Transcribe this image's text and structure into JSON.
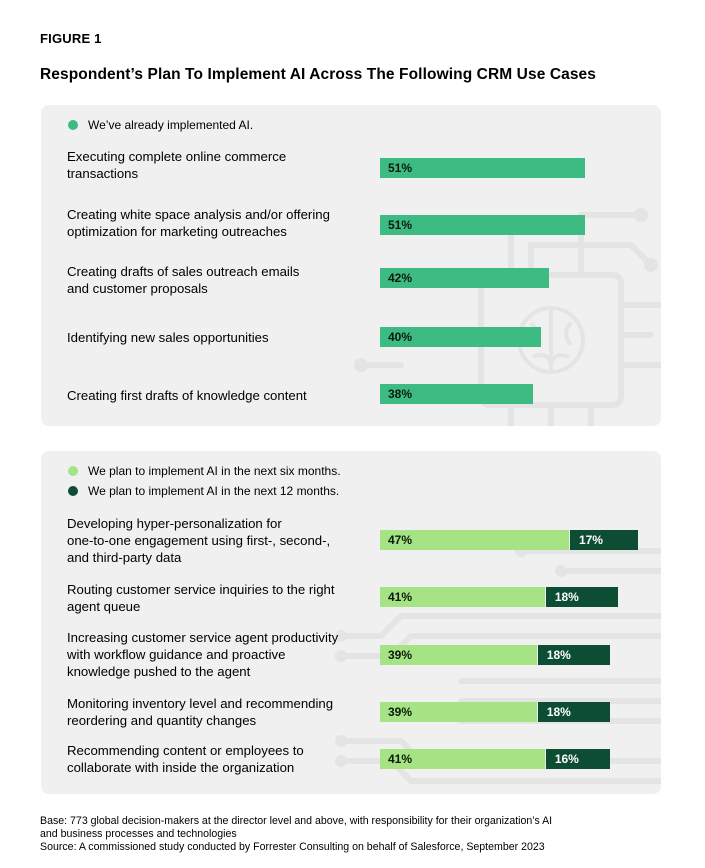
{
  "figure_label": "FIGURE 1",
  "title": "Respondent’s Plan To Implement AI Across The Following CRM Use Cases",
  "colors": {
    "implemented": "#3dbb83",
    "six_months": "#a6e385",
    "twelve_months": "#0c4d33",
    "panel_bg": "#f0f0f0"
  },
  "chart_data": [
    {
      "type": "bar",
      "orientation": "horizontal",
      "legend": [
        "We’ve already implemented AI."
      ],
      "categories": [
        "Executing complete online commerce transactions",
        "Creating white space analysis and/or offering optimization for marketing outreaches",
        "Creating drafts of sales outreach emails and customer proposals",
        "Identifying new sales opportunities",
        "Creating first drafts of knowledge content"
      ],
      "label_lines": [
        [
          "Executing complete online commerce",
          "transactions"
        ],
        [
          "Creating white space analysis and/or offering",
          "optimization for marketing outreaches"
        ],
        [
          "Creating drafts of sales outreach emails",
          "and customer proposals"
        ],
        [
          "Identifying new sales opportunities"
        ],
        [
          "Creating first drafts of knowledge content"
        ]
      ],
      "series": [
        {
          "name": "We’ve already implemented AI.",
          "values": [
            51,
            51,
            42,
            40,
            38
          ]
        }
      ],
      "value_suffix": "%",
      "xlim": [
        0,
        100
      ]
    },
    {
      "type": "bar",
      "orientation": "horizontal",
      "stacked": true,
      "legend": [
        "We plan to implement AI in the next six months.",
        "We plan to implement AI in the next 12 months."
      ],
      "categories": [
        "Developing hyper-personalization for one-to-one engagement using first-, second-, and third-party data",
        "Routing customer service inquiries to the right agent queue",
        "Increasing customer service agent productivity with workflow guidance and proactive knowledge pushed to the agent",
        "Monitoring inventory level and recommending reordering and quantity changes",
        "Recommending content or employees to collaborate with inside the organization"
      ],
      "label_lines": [
        [
          "Developing hyper-personalization for",
          "one-to-one engagement using first-, second-,",
          "and third-party data"
        ],
        [
          "Routing customer service inquiries to the right",
          "agent queue"
        ],
        [
          "Increasing customer service agent productivity",
          "with workflow guidance and proactive",
          "knowledge pushed to the agent"
        ],
        [
          "Monitoring inventory level and recommending",
          "reordering and quantity changes"
        ],
        [
          "Recommending content or employees to",
          "collaborate with inside the organization"
        ]
      ],
      "series": [
        {
          "name": "We plan to implement AI in the next six months.",
          "values": [
            47,
            41,
            39,
            39,
            41
          ]
        },
        {
          "name": "We plan to implement AI in the next 12 months.",
          "values": [
            17,
            18,
            18,
            18,
            16
          ]
        }
      ],
      "value_suffix": "%",
      "xlim": [
        0,
        100
      ]
    }
  ],
  "footer": {
    "base_line1": "Base: 773 global decision-makers at the director level and above, with responsibility for their organization’s AI",
    "base_line2": "and business processes and technologies",
    "source": "Source: A commissioned study conducted by Forrester Consulting on behalf of Salesforce, September 2023"
  }
}
